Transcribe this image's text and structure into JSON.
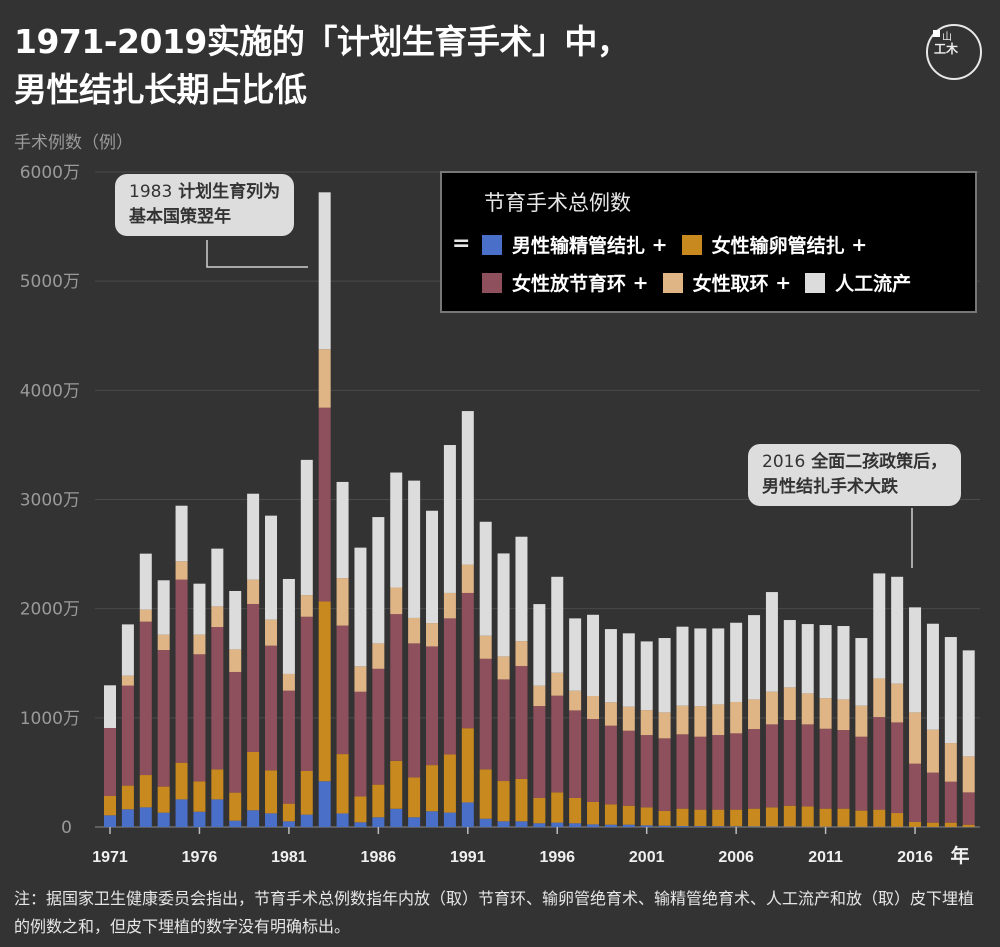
{
  "header": {
    "title_line1": "1971-2019实施的「计划生育手术」中，",
    "title_line2": "男性结扎长期占比低",
    "logo_text_top": "山",
    "logo_text_bottom": "工木"
  },
  "annotations": [
    {
      "year_text": "1983",
      "text_line1": "计划生育列为",
      "text_line2": "基本国策翌年"
    },
    {
      "year_text": "2016",
      "text_line1": "全面二孩政策后，",
      "text_line2": "男性结扎手术大跌"
    }
  ],
  "legend": {
    "title": "节育手术总例数",
    "equals": "=",
    "plus": "+",
    "items": [
      {
        "label": "男性输精管结扎",
        "color": "#4a6fc9"
      },
      {
        "label": "女性输卵管结扎",
        "color": "#c8891e"
      },
      {
        "label": "女性放节育环",
        "color": "#8e505c"
      },
      {
        "label": "女性取环",
        "color": "#e0b585"
      },
      {
        "label": "人工流产",
        "color": "#dcdcdc"
      }
    ]
  },
  "note": "注：据国家卫生健康委员会指出，节育手术总例数指年内放（取）节育环、输卵管绝育术、输精管绝育术、人工流产和放（取）皮下埋植的例数之和，但皮下埋植的数字没有明确标出。",
  "chart_data": {
    "type": "bar",
    "stacked": true,
    "title": "1971-2019实施的「计划生育手术」中，男性结扎长期占比低",
    "ylabel": "手术例数（例）",
    "xlabel": "年",
    "unit": "万",
    "ylim": [
      0,
      6000
    ],
    "yticks": [
      0,
      1000,
      2000,
      3000,
      4000,
      5000,
      6000
    ],
    "ytick_labels": [
      "0",
      "1000万",
      "2000万",
      "3000万",
      "4000万",
      "5000万",
      "6000万"
    ],
    "xtick_labels": [
      "1971",
      "1976",
      "1981",
      "1986",
      "1991",
      "1996",
      "2001",
      "2006",
      "2011",
      "2016"
    ],
    "grid": true,
    "legend_position": "top-right",
    "categories": [
      1971,
      1972,
      1973,
      1974,
      1975,
      1976,
      1977,
      1978,
      1979,
      1980,
      1981,
      1982,
      1983,
      1984,
      1985,
      1986,
      1987,
      1988,
      1989,
      1990,
      1991,
      1992,
      1993,
      1994,
      1995,
      1996,
      1997,
      1998,
      1999,
      2000,
      2001,
      2002,
      2003,
      2004,
      2005,
      2006,
      2007,
      2008,
      2009,
      2010,
      2011,
      2012,
      2013,
      2014,
      2015,
      2016,
      2017,
      2018,
      2019
    ],
    "series": [
      {
        "name": "男性输精管结扎",
        "color": "#4a6fc9",
        "values": [
          107,
          162,
          180,
          131,
          253,
          140,
          253,
          58,
          153,
          125,
          52,
          113,
          419,
          124,
          43,
          89,
          167,
          89,
          144,
          132,
          225,
          76,
          52,
          52,
          34,
          40,
          34,
          24,
          21,
          21,
          15,
          12,
          9,
          8,
          7,
          6,
          5,
          4,
          4,
          3,
          3,
          3,
          2,
          2,
          2,
          1,
          1,
          1,
          1
        ]
      },
      {
        "name": "女性输卵管结扎",
        "color": "#c8891e",
        "values": [
          177,
          217,
          296,
          239,
          336,
          278,
          275,
          257,
          534,
          394,
          162,
          400,
          1647,
          544,
          237,
          299,
          439,
          365,
          423,
          532,
          680,
          452,
          369,
          388,
          232,
          277,
          232,
          205,
          187,
          174,
          165,
          135,
          159,
          151,
          152,
          153,
          163,
          176,
          191,
          186,
          165,
          165,
          148,
          157,
          126,
          45,
          39,
          39,
          20
        ]
      },
      {
        "name": "女性放节育环",
        "color": "#8e505c",
        "values": [
          623,
          916,
          1405,
          1251,
          1677,
          1164,
          1304,
          1105,
          1356,
          1142,
          1035,
          1413,
          1775,
          1177,
          959,
          1061,
          1344,
          1228,
          1087,
          1247,
          1239,
          1013,
          931,
          1034,
          842,
          886,
          802,
          760,
          720,
          687,
          662,
          665,
          681,
          668,
          683,
          699,
          729,
          760,
          785,
          751,
          732,
          720,
          677,
          848,
          830,
          534,
          458,
          375,
          296
        ]
      },
      {
        "name": "女性取环",
        "color": "#e0b585",
        "values": [
          0,
          91,
          110,
          141,
          168,
          180,
          189,
          207,
          223,
          238,
          153,
          198,
          536,
          435,
          233,
          233,
          244,
          233,
          214,
          233,
          260,
          211,
          211,
          229,
          186,
          210,
          180,
          211,
          214,
          220,
          229,
          238,
          262,
          281,
          281,
          287,
          272,
          299,
          299,
          284,
          281,
          281,
          284,
          354,
          355,
          470,
          393,
          354,
          330
        ]
      },
      {
        "name": "人工流产",
        "color": "#dcdcdc",
        "values": [
          391,
          470,
          513,
          498,
          509,
          467,
          529,
          535,
          787,
          953,
          870,
          1239,
          1437,
          881,
          1087,
          1157,
          1053,
          1258,
          1029,
          1355,
          1406,
          1044,
          943,
          956,
          748,
          879,
          663,
          744,
          671,
          672,
          629,
          681,
          724,
          711,
          696,
          726,
          772,
          913,
          617,
          635,
          669,
          672,
          620,
          962,
          979,
          962,
          971,
          971,
          971
        ]
      }
    ]
  }
}
